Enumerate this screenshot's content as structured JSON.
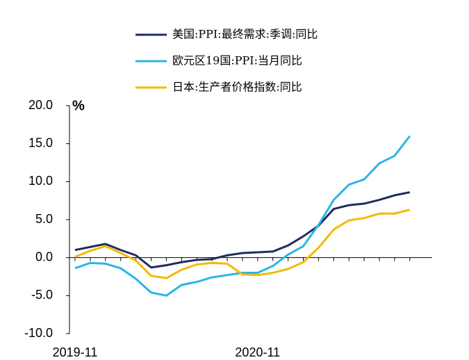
{
  "chart_data": {
    "type": "line",
    "y_unit": "%",
    "categories": [
      "2019-11",
      null,
      null,
      null,
      null,
      null,
      null,
      null,
      null,
      null,
      null,
      null,
      "2020-11",
      null,
      null,
      null,
      null,
      null,
      null,
      null,
      null,
      null,
      null
    ],
    "series": [
      {
        "name": "美国:PPI:最终需求:季调:同比",
        "color": "#1f2d5c",
        "values": [
          1.0,
          1.4,
          1.8,
          1.0,
          0.3,
          -1.3,
          -1.0,
          -0.6,
          -0.3,
          -0.2,
          0.3,
          0.6,
          0.7,
          0.8,
          1.6,
          2.8,
          4.2,
          6.4,
          6.9,
          7.1,
          7.6,
          8.2,
          8.6
        ]
      },
      {
        "name": "欧元区19国:PPI:当月同比",
        "color": "#29b5e8",
        "values": [
          -1.4,
          -0.7,
          -0.8,
          -1.4,
          -2.8,
          -4.6,
          -5.0,
          -3.6,
          -3.2,
          -2.6,
          -2.3,
          -2.0,
          -2.0,
          -1.1,
          0.4,
          1.5,
          4.3,
          7.6,
          9.6,
          10.3,
          12.4,
          13.4,
          16.0
        ]
      },
      {
        "name": "日本:生产者价格指数:同比",
        "color": "#f5b800",
        "values": [
          0.1,
          0.9,
          1.5,
          0.6,
          -0.4,
          -2.4,
          -2.7,
          -1.6,
          -0.9,
          -0.7,
          -0.8,
          -2.2,
          -2.3,
          -2.0,
          -1.5,
          -0.6,
          1.3,
          3.7,
          4.9,
          5.2,
          5.8,
          5.8,
          6.3
        ]
      }
    ],
    "ylim": [
      -10,
      20
    ],
    "yticks": [
      {
        "value": -10,
        "label": "-10.0"
      },
      {
        "value": -5,
        "label": "-5.0"
      },
      {
        "value": 0,
        "label": "0.0"
      },
      {
        "value": 5,
        "label": "5.0"
      },
      {
        "value": 10,
        "label": "10.0"
      },
      {
        "value": 15,
        "label": "15.0"
      },
      {
        "value": 20,
        "label": "20.0"
      }
    ]
  }
}
